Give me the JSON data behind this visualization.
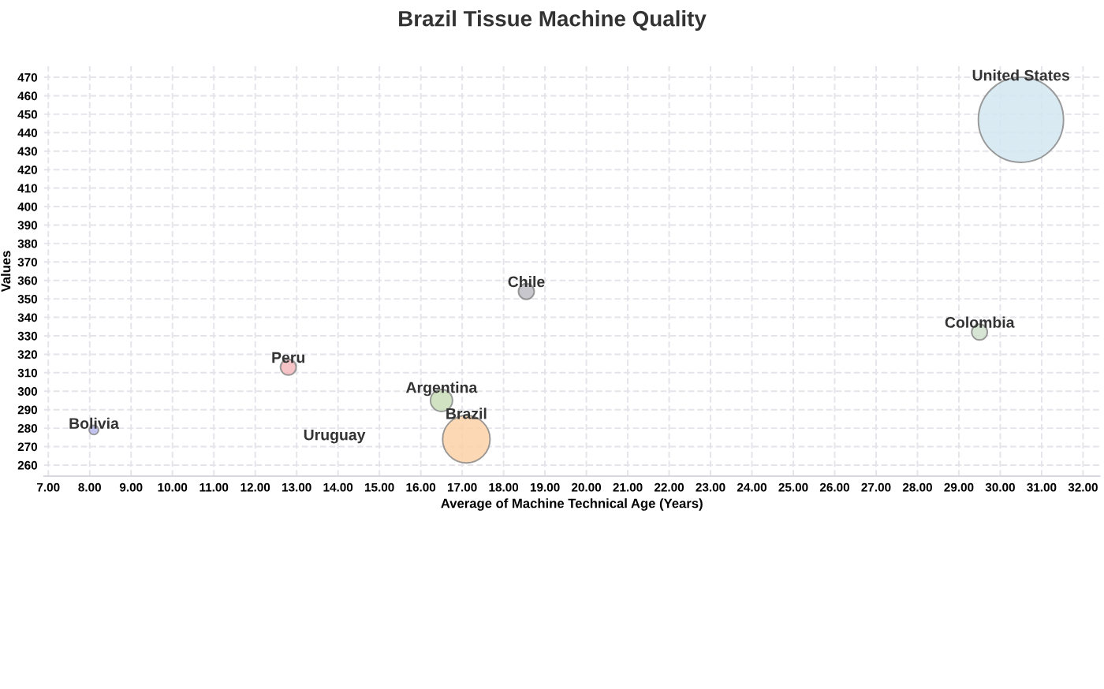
{
  "chart_data": {
    "type": "bubble",
    "title": "Brazil Tissue Machine Quality",
    "xlabel": "Average of Machine Technical Age (Years)",
    "ylabel": "Values",
    "series": [
      {
        "name": "United States",
        "color": "#d4e6f1",
        "x": [
          30.5
        ],
        "values": [
          447
        ],
        "sizes": [
          1
        ]
      },
      {
        "name": "Colombia",
        "color": "#cfe0cc",
        "x": [
          29.5
        ],
        "values": [
          332
        ],
        "sizes": [
          0.034
        ]
      },
      {
        "name": "Chile",
        "color": "#bdbdc4",
        "x": [
          18.55
        ],
        "values": [
          354
        ],
        "sizes": [
          0.034
        ]
      },
      {
        "name": "Peru",
        "color": "#f4b9bd",
        "x": [
          12.8
        ],
        "values": [
          313
        ],
        "sizes": [
          0.034
        ]
      },
      {
        "name": "Argentina",
        "color": "#c9ddb8",
        "x": [
          16.5
        ],
        "values": [
          295
        ],
        "sizes": [
          0.067
        ]
      },
      {
        "name": "Brazil",
        "color": "#fdd1a8",
        "x": [
          17.1
        ],
        "values": [
          274
        ],
        "sizes": [
          0.31
        ]
      },
      {
        "name": "Bolivia",
        "color": "#b9b9ec",
        "x": [
          8.1
        ],
        "values": [
          279
        ],
        "sizes": [
          0.012
        ]
      }
    ],
    "annotations": [
      "Uruguay"
    ],
    "xlim": [
      6.9,
      32.4
    ],
    "ylim": [
      254,
      476
    ],
    "xticks": [
      {
        "value": 7,
        "label": "7.00"
      },
      {
        "value": 8,
        "label": "8.00"
      },
      {
        "value": 9,
        "label": "9.00"
      },
      {
        "value": 10,
        "label": "10.00"
      },
      {
        "value": 11,
        "label": "11.00"
      },
      {
        "value": 12,
        "label": "12.00"
      },
      {
        "value": 13,
        "label": "13.00"
      },
      {
        "value": 14,
        "label": "14.00"
      },
      {
        "value": 15,
        "label": "15.00"
      },
      {
        "value": 16,
        "label": "16.00"
      },
      {
        "value": 17,
        "label": "17.00"
      },
      {
        "value": 18,
        "label": "18.00"
      },
      {
        "value": 19,
        "label": "19.00"
      },
      {
        "value": 20,
        "label": "20.00"
      },
      {
        "value": 21,
        "label": "21.00"
      },
      {
        "value": 22,
        "label": "22.00"
      },
      {
        "value": 23,
        "label": "23.00"
      },
      {
        "value": 24,
        "label": "24.00"
      },
      {
        "value": 25,
        "label": "25.00"
      },
      {
        "value": 26,
        "label": "26.00"
      },
      {
        "value": 27,
        "label": "27.00"
      },
      {
        "value": 28,
        "label": "28.00"
      },
      {
        "value": 29,
        "label": "29.00"
      },
      {
        "value": 30,
        "label": "30.00"
      },
      {
        "value": 31,
        "label": "31.00"
      },
      {
        "value": 32,
        "label": "32.00"
      }
    ],
    "yticks": [
      260,
      270,
      280,
      290,
      300,
      310,
      320,
      330,
      340,
      350,
      360,
      370,
      380,
      390,
      400,
      410,
      420,
      430,
      440,
      450,
      460,
      470
    ],
    "grid": true,
    "legend": false
  }
}
